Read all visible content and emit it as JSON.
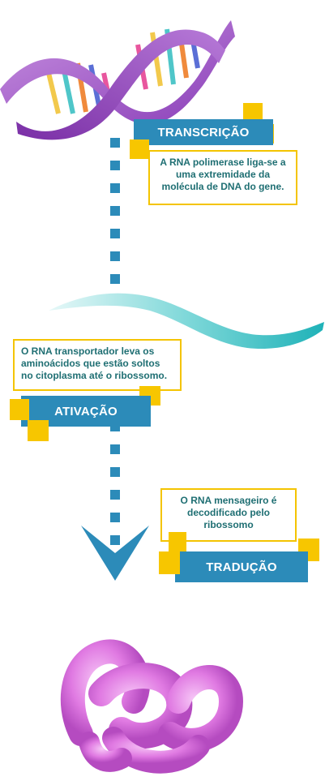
{
  "steps": {
    "transcricao": {
      "title": "TRANSCRIÇÃO",
      "text": "A RNA polimerase liga-se a uma extremidade da molécula de DNA do gene."
    },
    "ativacao": {
      "title": "ATIVAÇÃO",
      "text": "O RNA transportador leva os aminoácidos que estão soltos no citoplasma até o ribossomo."
    },
    "traducao": {
      "title": "TRADUÇÃO",
      "text": "O RNA mensageiro é decodificado pelo ribossomo"
    }
  },
  "illustrations": {
    "dna": "dna-helix-icon",
    "rna": "rna-strand-icon",
    "protein": "protein-coil-icon"
  },
  "colors": {
    "label_bg": "#2c8bb9",
    "accent_yellow": "#f7c600",
    "note_text": "#1f6f73",
    "dna_purple": "#9b4fc0",
    "rna_teal": "#4fc6c9",
    "protein_pink": "#e68ae8"
  }
}
